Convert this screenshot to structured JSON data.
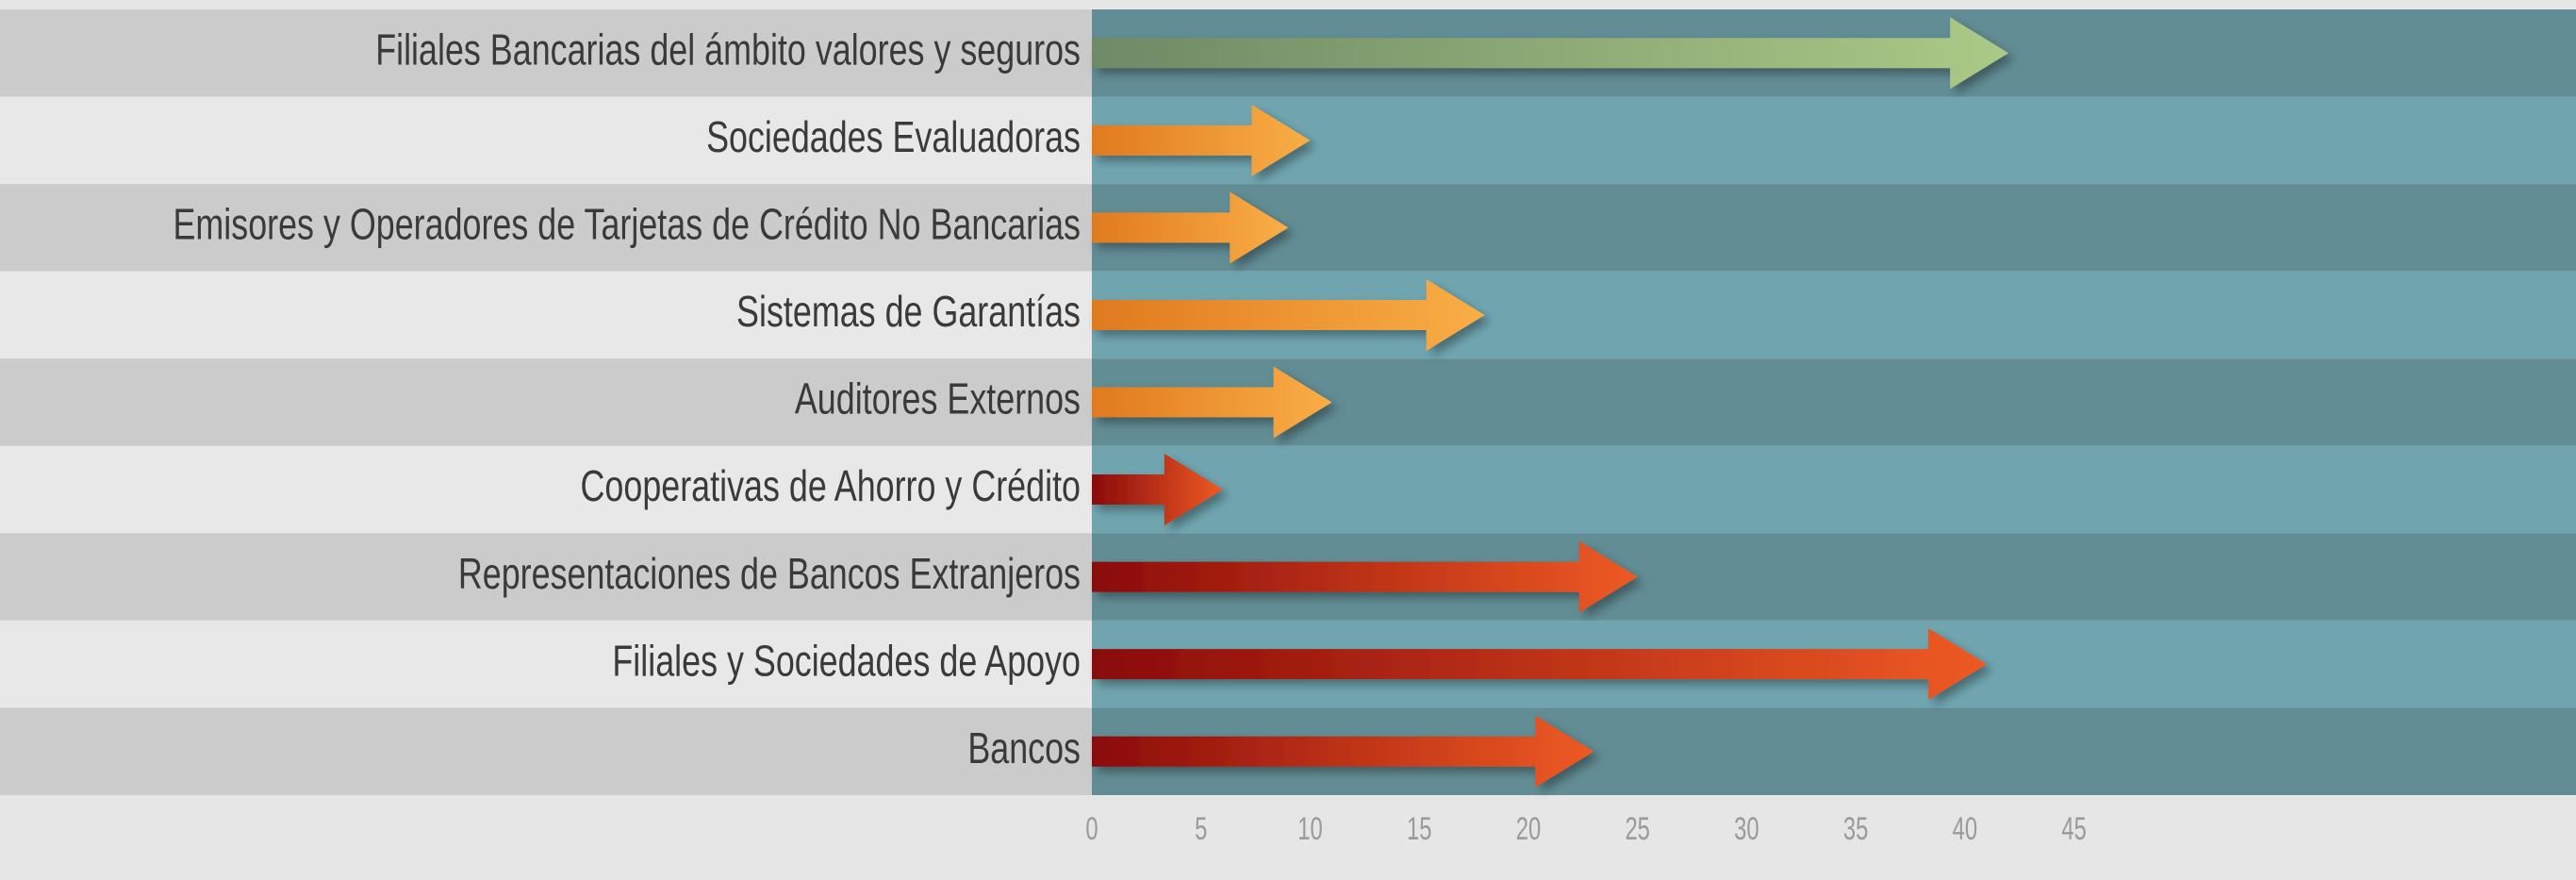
{
  "chart_data": {
    "type": "arrow-bar",
    "categories": [
      "Filiales Bancarias del ámbito valores y seguros",
      "Sociedades Evaluadoras",
      "Emisores y Operadores de Tarjetas de Crédito No Bancarias",
      "Sistemas de Garantías",
      "Auditores Externos",
      "Cooperativas de Ahorro y Crédito",
      "Representaciones de Bancos Extranjeros",
      "Filiales y Sociedades de Apoyo",
      "Bancos"
    ],
    "values": [
      42,
      10,
      9,
      18,
      11,
      6,
      25,
      41,
      23
    ],
    "colors": [
      [
        "#6e8a66",
        "#abc986"
      ],
      [
        "#e07a1f",
        "#f9ae46"
      ],
      [
        "#e07a1f",
        "#f9ae46"
      ],
      [
        "#e07a1f",
        "#f9ae46"
      ],
      [
        "#e07a1f",
        "#f9ae46"
      ],
      [
        "#8a0a0a",
        "#ee5a24"
      ],
      [
        "#8a0a0a",
        "#ee5a24"
      ],
      [
        "#8a0a0a",
        "#ee5a24"
      ],
      [
        "#8a0a0a",
        "#ee5a24"
      ]
    ],
    "xlim": [
      0,
      68
    ],
    "xticks": [
      0,
      5,
      10,
      15,
      20,
      25,
      30,
      35,
      40,
      45
    ]
  }
}
